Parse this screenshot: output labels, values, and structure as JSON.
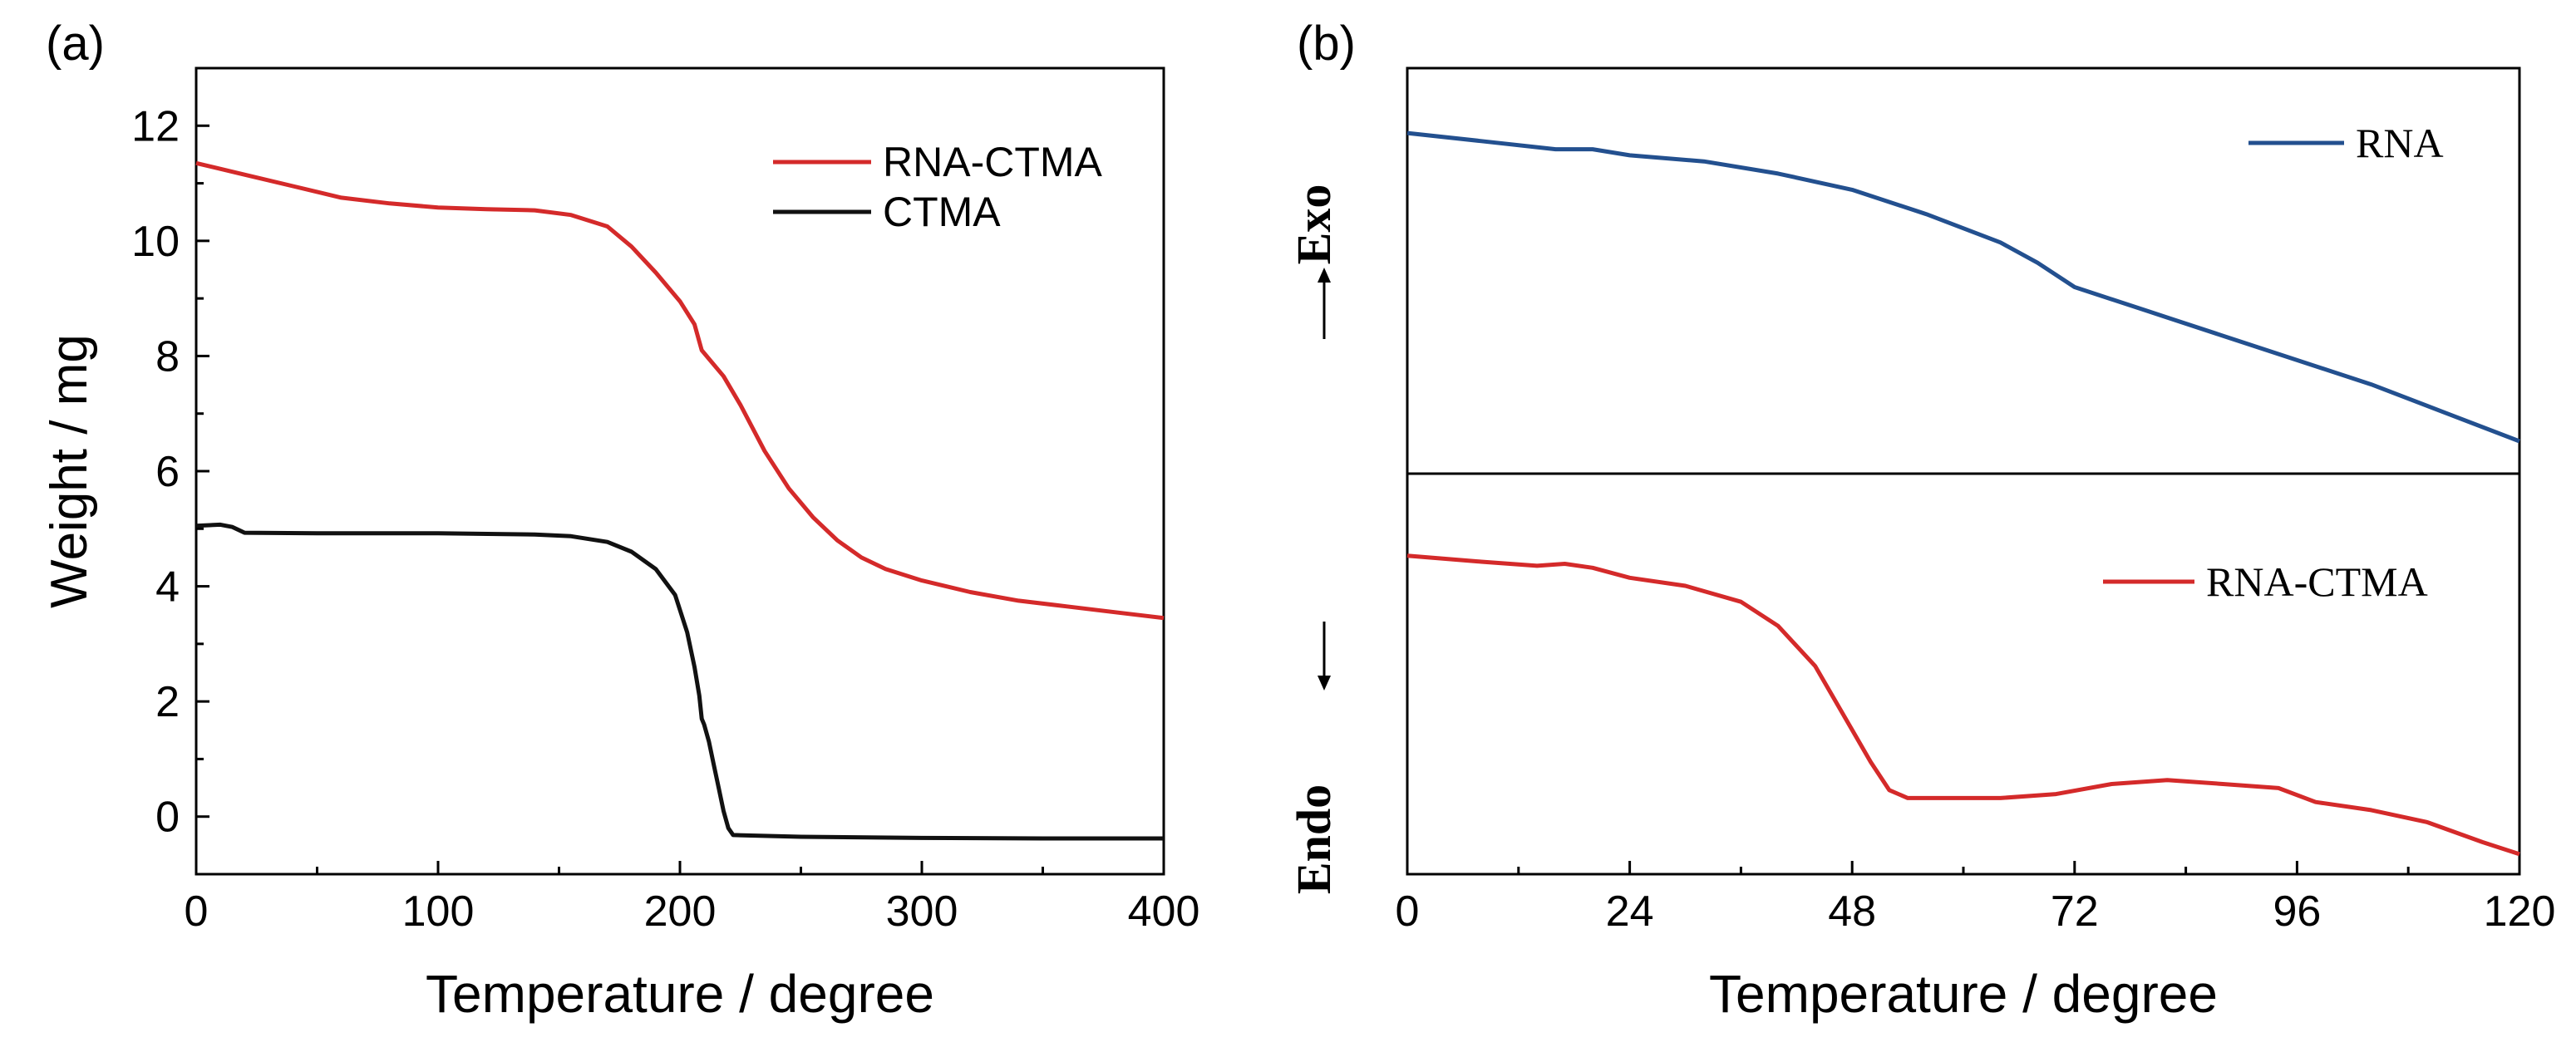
{
  "chart_data": [
    {
      "type": "line",
      "panel_label": "(a)",
      "xlabel": "Temperature / degree",
      "ylabel": "Weight / mg",
      "xlim": [
        0,
        400
      ],
      "ylim": [
        -1,
        13
      ],
      "xticks": [
        0,
        100,
        200,
        300,
        400
      ],
      "yticks": [
        0,
        2,
        4,
        6,
        8,
        10,
        12
      ],
      "grid": false,
      "legend_position": "top-right",
      "series": [
        {
          "name": "RNA-CTMA",
          "color": "#d42a2a",
          "points": [
            [
              0,
              11.35
            ],
            [
              20,
              11.15
            ],
            [
              40,
              10.95
            ],
            [
              60,
              10.75
            ],
            [
              80,
              10.65
            ],
            [
              100,
              10.58
            ],
            [
              120,
              10.55
            ],
            [
              140,
              10.53
            ],
            [
              155,
              10.45
            ],
            [
              170,
              10.25
            ],
            [
              180,
              9.9
            ],
            [
              190,
              9.45
            ],
            [
              200,
              8.95
            ],
            [
              206,
              8.55
            ],
            [
              209,
              8.1
            ],
            [
              212,
              7.95
            ],
            [
              218,
              7.65
            ],
            [
              225,
              7.15
            ],
            [
              235,
              6.35
            ],
            [
              245,
              5.7
            ],
            [
              255,
              5.2
            ],
            [
              265,
              4.8
            ],
            [
              275,
              4.5
            ],
            [
              285,
              4.3
            ],
            [
              300,
              4.1
            ],
            [
              320,
              3.9
            ],
            [
              340,
              3.75
            ],
            [
              360,
              3.65
            ],
            [
              380,
              3.55
            ],
            [
              400,
              3.45
            ]
          ]
        },
        {
          "name": "CTMA",
          "color": "#111111",
          "points": [
            [
              0,
              5.05
            ],
            [
              10,
              5.07
            ],
            [
              15,
              5.03
            ],
            [
              20,
              4.93
            ],
            [
              50,
              4.92
            ],
            [
              100,
              4.92
            ],
            [
              140,
              4.9
            ],
            [
              155,
              4.87
            ],
            [
              170,
              4.77
            ],
            [
              180,
              4.6
            ],
            [
              190,
              4.3
            ],
            [
              198,
              3.85
            ],
            [
              203,
              3.2
            ],
            [
              206,
              2.6
            ],
            [
              208,
              2.1
            ],
            [
              209,
              1.7
            ],
            [
              210,
              1.6
            ],
            [
              212,
              1.3
            ],
            [
              214,
              0.9
            ],
            [
              216,
              0.5
            ],
            [
              218,
              0.1
            ],
            [
              220,
              -0.2
            ],
            [
              222,
              -0.32
            ],
            [
              250,
              -0.35
            ],
            [
              300,
              -0.37
            ],
            [
              350,
              -0.38
            ],
            [
              400,
              -0.38
            ]
          ]
        }
      ]
    },
    {
      "type": "line",
      "panel_label": "(b)",
      "xlabel": "Temperature / degree",
      "xlim": [
        0,
        120
      ],
      "xticks": [
        0,
        24,
        48,
        72,
        96,
        120
      ],
      "exo_label": "Exo",
      "endo_label": "Endo",
      "grid": false,
      "note": "Stacked panels with no y-axis scale; curve levels are relative (0 = bottom, 1 = top of each sub-panel).",
      "subplots": [
        {
          "name": "RNA",
          "color": "#23508f",
          "legend_position": "top-right",
          "ylim": [
            0,
            1
          ],
          "points": [
            [
              0,
              0.84
            ],
            [
              8,
              0.82
            ],
            [
              16,
              0.8
            ],
            [
              20,
              0.8
            ],
            [
              24,
              0.785
            ],
            [
              32,
              0.77
            ],
            [
              40,
              0.74
            ],
            [
              48,
              0.7
            ],
            [
              56,
              0.64
            ],
            [
              64,
              0.57
            ],
            [
              68,
              0.52
            ],
            [
              72,
              0.46
            ],
            [
              80,
              0.4
            ],
            [
              88,
              0.34
            ],
            [
              96,
              0.28
            ],
            [
              104,
              0.22
            ],
            [
              112,
              0.15
            ],
            [
              120,
              0.08
            ]
          ]
        },
        {
          "name": "RNA-CTMA",
          "color": "#d42a2a",
          "legend_position": "top-right",
          "ylim": [
            0,
            1
          ],
          "points": [
            [
              0,
              0.795
            ],
            [
              8,
              0.78
            ],
            [
              14,
              0.77
            ],
            [
              17,
              0.775
            ],
            [
              20,
              0.765
            ],
            [
              24,
              0.74
            ],
            [
              30,
              0.72
            ],
            [
              36,
              0.68
            ],
            [
              40,
              0.62
            ],
            [
              44,
              0.52
            ],
            [
              47,
              0.4
            ],
            [
              50,
              0.28
            ],
            [
              52,
              0.21
            ],
            [
              54,
              0.19
            ],
            [
              60,
              0.19
            ],
            [
              64,
              0.19
            ],
            [
              70,
              0.2
            ],
            [
              76,
              0.225
            ],
            [
              82,
              0.235
            ],
            [
              88,
              0.225
            ],
            [
              94,
              0.215
            ],
            [
              98,
              0.18
            ],
            [
              104,
              0.16
            ],
            [
              110,
              0.13
            ],
            [
              116,
              0.08
            ],
            [
              120,
              0.05
            ]
          ]
        }
      ]
    }
  ]
}
